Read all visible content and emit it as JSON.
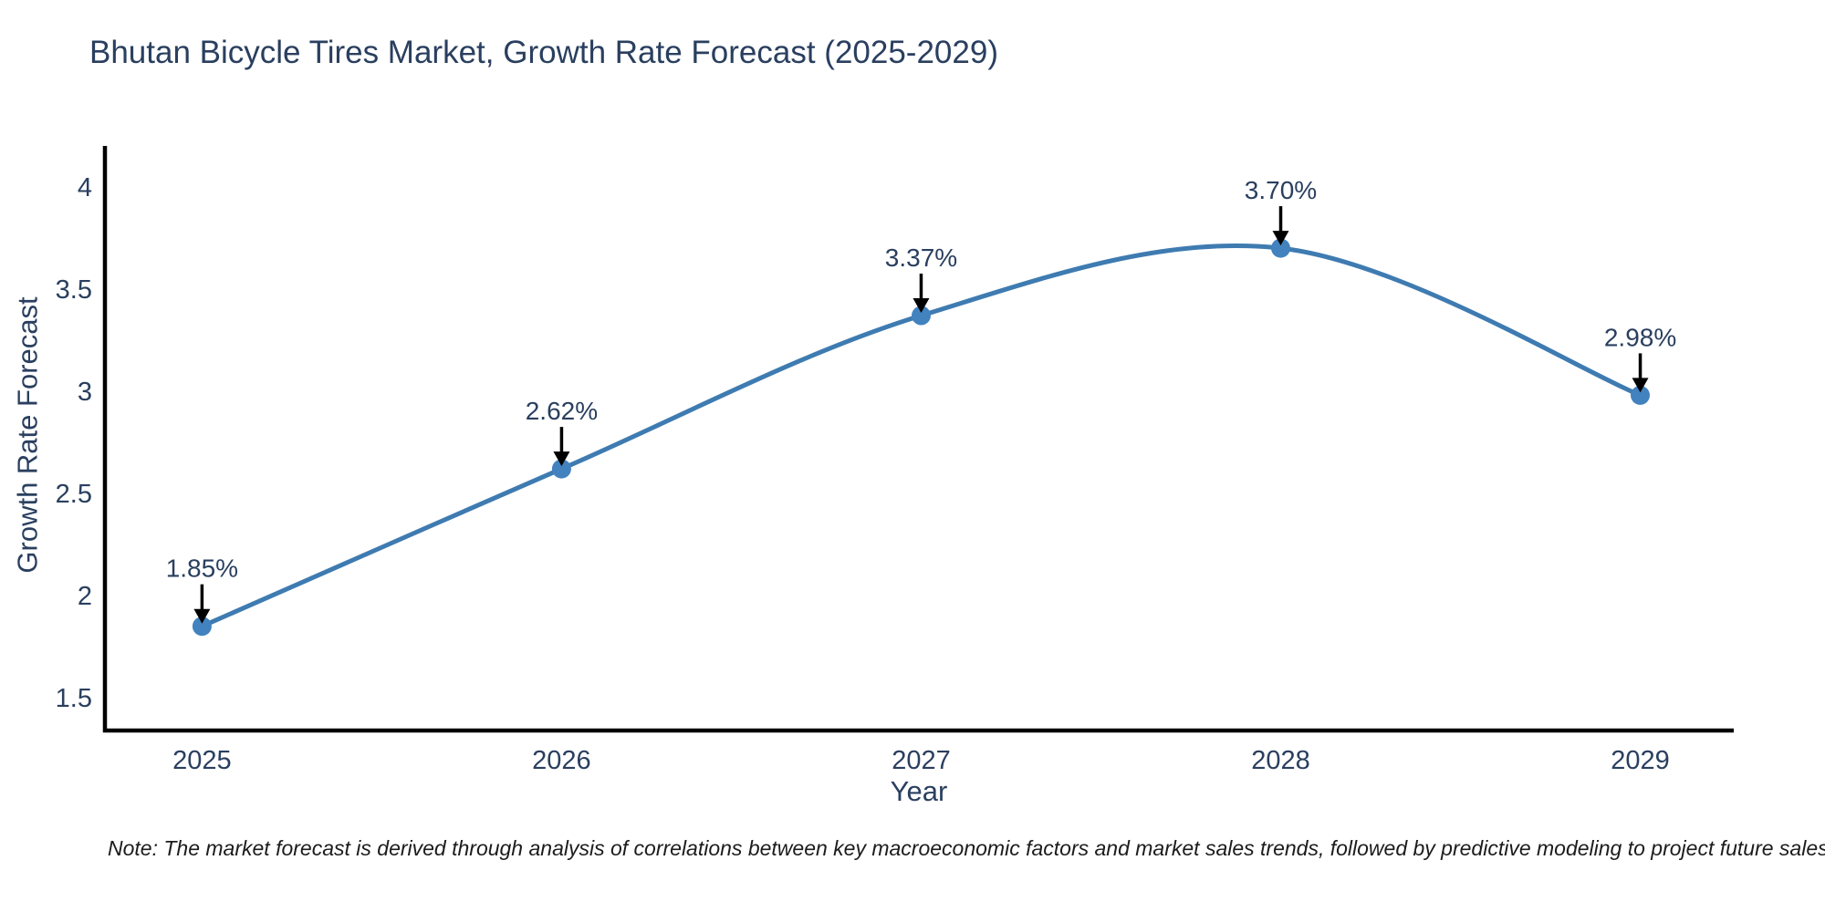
{
  "figure": {
    "note": "Note: The market forecast is derived through analysis of correlations between key macroeconomic factors and market sales trends, followed by predictive modeling to project future sales"
  },
  "chart_data": {
    "type": "line",
    "title": "Bhutan Bicycle Tires Market, Growth Rate Forecast (2025-2029)",
    "xlabel": "Year",
    "ylabel": "Growth Rate Forecast",
    "x": [
      2025,
      2026,
      2027,
      2028,
      2029
    ],
    "series": [
      {
        "name": "Growth Rate Forecast",
        "values": [
          1.85,
          2.62,
          3.37,
          3.7,
          2.98
        ],
        "point_labels": [
          "1.85%",
          "2.62%",
          "3.37%",
          "3.70%",
          "2.98%"
        ]
      }
    ],
    "xtick_labels": [
      "2025",
      "2026",
      "2027",
      "2028",
      "2029"
    ],
    "ytick_values": [
      1.5,
      2,
      2.5,
      3,
      3.5,
      4
    ],
    "ytick_labels": [
      "1.5",
      "2",
      "2.5",
      "3",
      "3.5",
      "4"
    ],
    "xlim": [
      2024.73,
      2029.26
    ],
    "ylim": [
      1.34,
      4.2
    ],
    "grid": false,
    "legend_position": "none",
    "line_shape": "spline",
    "annotation_style": "value label above each point with black arrow pointing down to marker",
    "colors": {
      "line": "#3e7bb1",
      "marker": "#4282be",
      "arrow": "#000000",
      "axis": "#000000",
      "text": "#2a3f5f"
    }
  }
}
